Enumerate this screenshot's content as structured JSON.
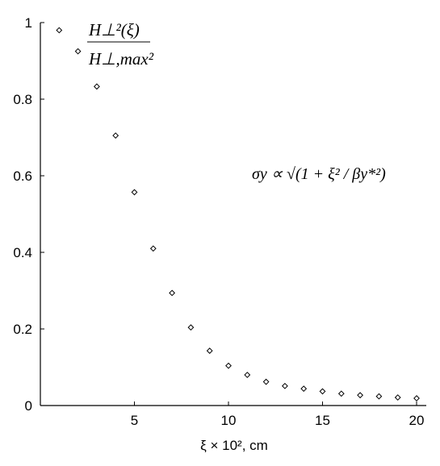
{
  "chart_data": {
    "type": "scatter",
    "marker": "diamond",
    "x": [
      1,
      2,
      3,
      4,
      5,
      6,
      7,
      8,
      9,
      10,
      11,
      12,
      13,
      14,
      15,
      16,
      17,
      18,
      19,
      20
    ],
    "y": [
      0.98,
      0.925,
      0.833,
      0.705,
      0.557,
      0.41,
      0.294,
      0.204,
      0.143,
      0.104,
      0.08,
      0.062,
      0.051,
      0.044,
      0.037,
      0.031,
      0.027,
      0.024,
      0.021,
      0.019
    ],
    "xlim": [
      0,
      20.5
    ],
    "ylim": [
      0,
      1
    ],
    "x_ticks": [
      5,
      10,
      15,
      20
    ],
    "x_tick_labels": [
      "5",
      "10",
      "15",
      "20"
    ],
    "y_ticks": [
      0,
      0.2,
      0.4,
      0.6,
      0.8,
      1
    ],
    "y_tick_labels": [
      "0",
      "0.2",
      "0.4",
      "0.6",
      "0.8",
      "1"
    ],
    "xlabel": "ξ × 10², cm",
    "ylabel_numerator": "H⊥²(ξ)",
    "ylabel_denominator": "H⊥,max²",
    "annotation": "σy ∝ √(1 + ξ² / βy*²)",
    "grid": false,
    "color": "#000000"
  }
}
